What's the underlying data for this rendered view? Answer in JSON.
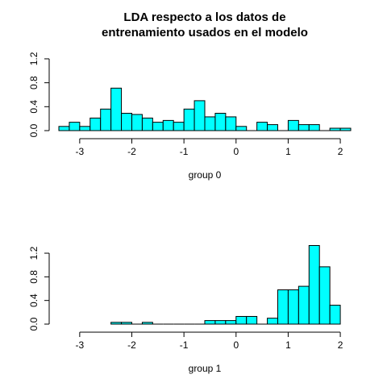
{
  "chart_data": {
    "type": "bar",
    "title": [
      "LDA respecto a los datos de",
      "entrenamiento usados en el modelo"
    ],
    "bar_color": "#00ffff",
    "bin_width": 0.2,
    "panels": [
      {
        "xlabel": "group 0",
        "xlim": [
          -3.4,
          2.2
        ],
        "ylim": [
          0,
          1.2
        ],
        "x_ticks": [
          -3,
          -2,
          -1,
          0,
          1,
          2
        ],
        "x_tick_labels": [
          "-3",
          "-2",
          "-1",
          "0",
          "1",
          "2"
        ],
        "y_ticks": [
          0,
          0.4,
          0.8,
          1.2
        ],
        "y_tick_labels": [
          "0.0",
          "0.4",
          "0.8",
          "1.2"
        ],
        "bins": [
          {
            "x0": -3.4,
            "x1": -3.2,
            "y": 0.07
          },
          {
            "x0": -3.2,
            "x1": -3.0,
            "y": 0.14
          },
          {
            "x0": -3.0,
            "x1": -2.8,
            "y": 0.07
          },
          {
            "x0": -2.8,
            "x1": -2.6,
            "y": 0.21
          },
          {
            "x0": -2.6,
            "x1": -2.4,
            "y": 0.36
          },
          {
            "x0": -2.4,
            "x1": -2.2,
            "y": 0.71
          },
          {
            "x0": -2.2,
            "x1": -2.0,
            "y": 0.29
          },
          {
            "x0": -2.0,
            "x1": -1.8,
            "y": 0.27
          },
          {
            "x0": -1.8,
            "x1": -1.6,
            "y": 0.21
          },
          {
            "x0": -1.6,
            "x1": -1.4,
            "y": 0.14
          },
          {
            "x0": -1.4,
            "x1": -1.2,
            "y": 0.17
          },
          {
            "x0": -1.2,
            "x1": -1.0,
            "y": 0.14
          },
          {
            "x0": -1.0,
            "x1": -0.8,
            "y": 0.36
          },
          {
            "x0": -0.8,
            "x1": -0.6,
            "y": 0.5
          },
          {
            "x0": -0.6,
            "x1": -0.4,
            "y": 0.23
          },
          {
            "x0": -0.4,
            "x1": -0.2,
            "y": 0.29
          },
          {
            "x0": -0.2,
            "x1": 0.0,
            "y": 0.23
          },
          {
            "x0": 0.0,
            "x1": 0.2,
            "y": 0.07
          },
          {
            "x0": 0.2,
            "x1": 0.4,
            "y": 0.0
          },
          {
            "x0": 0.4,
            "x1": 0.6,
            "y": 0.14
          },
          {
            "x0": 0.6,
            "x1": 0.8,
            "y": 0.1
          },
          {
            "x0": 0.8,
            "x1": 1.0,
            "y": 0.0
          },
          {
            "x0": 1.0,
            "x1": 1.2,
            "y": 0.17
          },
          {
            "x0": 1.2,
            "x1": 1.4,
            "y": 0.1
          },
          {
            "x0": 1.4,
            "x1": 1.6,
            "y": 0.1
          },
          {
            "x0": 1.6,
            "x1": 1.8,
            "y": 0.0
          },
          {
            "x0": 1.8,
            "x1": 2.0,
            "y": 0.04
          },
          {
            "x0": 2.0,
            "x1": 2.2,
            "y": 0.04
          }
        ]
      },
      {
        "xlabel": "group 1",
        "xlim": [
          -3.4,
          2.2
        ],
        "ylim": [
          0,
          1.3
        ],
        "x_ticks": [
          -3,
          -2,
          -1,
          0,
          1,
          2
        ],
        "x_tick_labels": [
          "-3",
          "-2",
          "-1",
          "0",
          "1",
          "2"
        ],
        "y_ticks": [
          0,
          0.4,
          0.8,
          1.2
        ],
        "y_tick_labels": [
          "0.0",
          "0.4",
          "0.8",
          "1.2"
        ],
        "bins": [
          {
            "x0": -2.4,
            "x1": -2.2,
            "y": 0.03
          },
          {
            "x0": -2.2,
            "x1": -2.0,
            "y": 0.03
          },
          {
            "x0": -2.0,
            "x1": -1.8,
            "y": 0.0
          },
          {
            "x0": -1.8,
            "x1": -1.6,
            "y": 0.03
          },
          {
            "x0": -1.6,
            "x1": -1.4,
            "y": 0.0
          },
          {
            "x0": -1.4,
            "x1": -1.2,
            "y": 0.0
          },
          {
            "x0": -1.2,
            "x1": -1.0,
            "y": 0.0
          },
          {
            "x0": -1.0,
            "x1": -0.8,
            "y": 0.0
          },
          {
            "x0": -0.8,
            "x1": -0.6,
            "y": 0.0
          },
          {
            "x0": -0.6,
            "x1": -0.4,
            "y": 0.06
          },
          {
            "x0": -0.4,
            "x1": -0.2,
            "y": 0.06
          },
          {
            "x0": -0.2,
            "x1": 0.0,
            "y": 0.06
          },
          {
            "x0": 0.0,
            "x1": 0.2,
            "y": 0.13
          },
          {
            "x0": 0.2,
            "x1": 0.4,
            "y": 0.13
          },
          {
            "x0": 0.4,
            "x1": 0.6,
            "y": 0.0
          },
          {
            "x0": 0.6,
            "x1": 0.8,
            "y": 0.1
          },
          {
            "x0": 0.8,
            "x1": 1.0,
            "y": 0.58
          },
          {
            "x0": 1.0,
            "x1": 1.2,
            "y": 0.58
          },
          {
            "x0": 1.2,
            "x1": 1.4,
            "y": 0.64
          },
          {
            "x0": 1.4,
            "x1": 1.6,
            "y": 1.33
          },
          {
            "x0": 1.6,
            "x1": 1.8,
            "y": 0.97
          },
          {
            "x0": 1.8,
            "x1": 2.0,
            "y": 0.32
          }
        ]
      }
    ]
  }
}
